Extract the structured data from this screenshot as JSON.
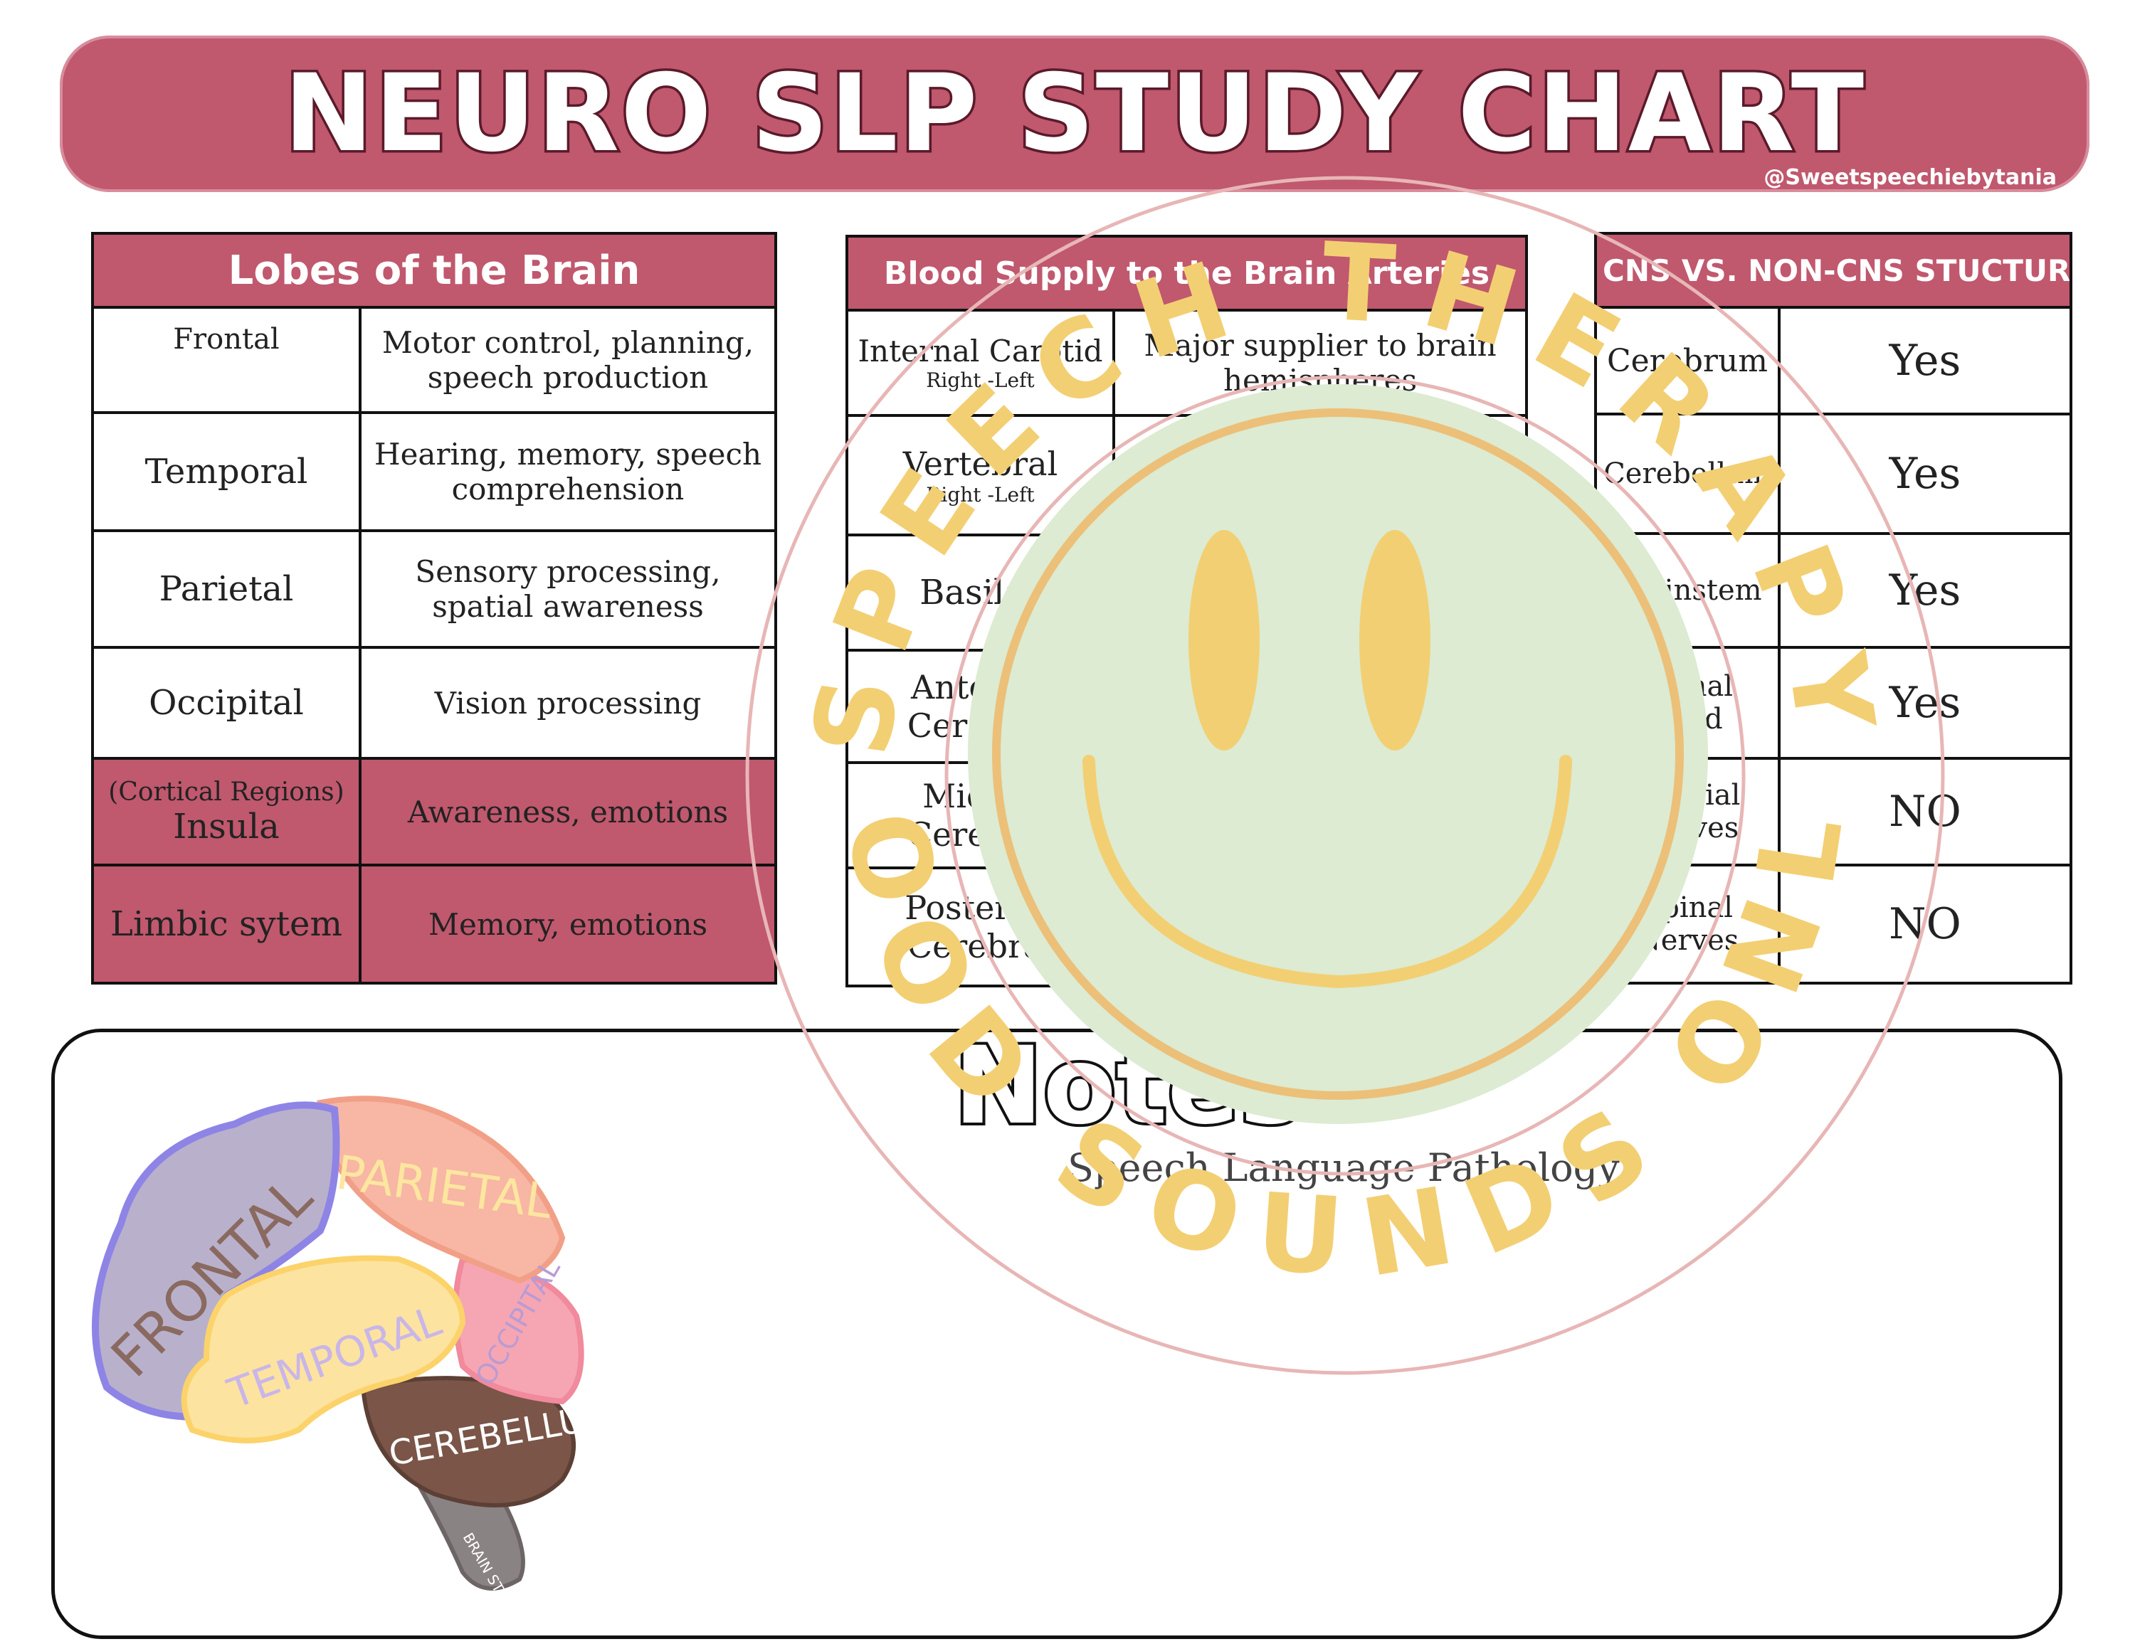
{
  "title": "NEURO SLP STUDY  CHART",
  "handle": "@Sweetspeechiebytania",
  "lobes": {
    "header": "Lobes of the Brain",
    "rows": [
      {
        "name": "Frontal",
        "desc": "Motor control, planning, speech production"
      },
      {
        "name": "Temporal",
        "desc": "Hearing, memory, speech comprehension"
      },
      {
        "name": "Parietal",
        "desc": "Sensory processing, spatial awareness"
      },
      {
        "name": "Occipital",
        "desc": "Vision processing"
      },
      {
        "note": "(Cortical Regions)",
        "name": "Insula",
        "desc": "Awareness, emotions"
      },
      {
        "name": "Limbic sytem",
        "desc": "Memory, emotions"
      }
    ]
  },
  "blood": {
    "header": "Blood Supply to the Brain Arteries",
    "rows": [
      {
        "name": "Internal Carotid",
        "sub": "Right -Left",
        "desc": "Major supplier to brain hemispheres"
      },
      {
        "name": "Vertebral",
        "sub": "Right -Left",
        "desc": ""
      },
      {
        "name": "Basilar",
        "desc": ""
      },
      {
        "name": "Anterior Cerebral",
        "desc": ""
      },
      {
        "name": "Middle Cerebral",
        "desc": ""
      },
      {
        "name": "Posterior Cerebral",
        "desc": ""
      }
    ]
  },
  "cns": {
    "header": "CNS VS. NON-CNS STUCTURES",
    "rows": [
      {
        "name": "Cerebrum",
        "answer": "Yes"
      },
      {
        "name": "Cerebellum",
        "answer": "Yes"
      },
      {
        "name": "Brainstem",
        "answer": "Yes"
      },
      {
        "name": "Spinal Cord",
        "answer": "Yes"
      },
      {
        "name": "Cranial Nerves",
        "answer": "NO"
      },
      {
        "name": "Spinal Nerves",
        "answer": "NO"
      }
    ]
  },
  "notes": {
    "title": "Notes",
    "subtitle": "Speech Language Pathology"
  },
  "brain_labels": {
    "frontal": "FRONTAL",
    "parietal": "PARIETAL",
    "temporal": "TEMPORAL",
    "occipital": "OCCIPITAL",
    "cerebellum": "CEREBELLUM",
    "brainstem": "BRAIN STEM"
  },
  "watermark": {
    "top_text": "SPEECH THERAPY",
    "bottom_text": "GOOD SOUNDS ONLY"
  },
  "colors": {
    "accent": "#c0586e",
    "frontal": "#b9b1cc",
    "parietal": "#f7b7a4",
    "temporal": "#fde3a0",
    "occipital": "#f6a6b2",
    "cerebellum": "#7a5548",
    "smiley": "#dcebd2",
    "smiley_features": "#f3cf73"
  }
}
